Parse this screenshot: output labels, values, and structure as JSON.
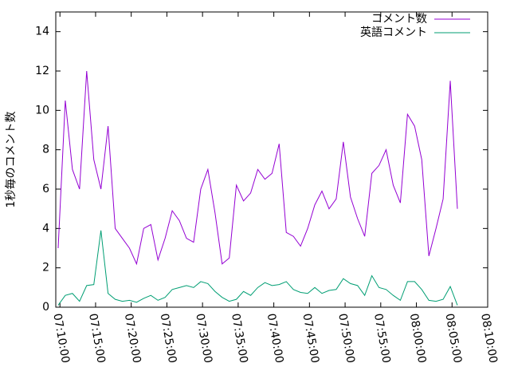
{
  "chart_data": {
    "type": "line",
    "y_label": "1秒毎のコメント数",
    "x": [
      "07:09:45",
      "07:10:45",
      "07:11:45",
      "07:12:45",
      "07:13:45",
      "07:14:45",
      "07:15:45",
      "07:16:45",
      "07:17:45",
      "07:18:45",
      "07:19:45",
      "07:20:45",
      "07:21:45",
      "07:22:45",
      "07:23:45",
      "07:24:45",
      "07:25:45",
      "07:26:45",
      "07:27:45",
      "07:28:45",
      "07:29:45",
      "07:30:45",
      "07:31:45",
      "07:32:45",
      "07:33:45",
      "07:34:45",
      "07:35:45",
      "07:36:45",
      "07:37:45",
      "07:38:45",
      "07:39:45",
      "07:40:45",
      "07:41:45",
      "07:42:45",
      "07:43:45",
      "07:44:45",
      "07:45:45",
      "07:46:45",
      "07:47:45",
      "07:48:45",
      "07:49:45",
      "07:50:45",
      "07:51:45",
      "07:52:45",
      "07:53:45",
      "07:54:45",
      "07:55:45",
      "07:56:45",
      "07:57:45",
      "07:58:45",
      "07:59:45",
      "08:00:45",
      "08:01:45",
      "08:02:45",
      "08:03:45",
      "08:04:45",
      "08:05:45"
    ],
    "series": [
      {
        "name": "コメント数",
        "color": "#9400d3",
        "values": [
          3,
          10.5,
          7,
          6,
          12,
          7.5,
          6,
          9.2,
          4,
          3.5,
          3,
          2.2,
          4,
          4.2,
          2.4,
          3.5,
          4.9,
          4.4,
          3.5,
          3.3,
          6,
          7,
          4.8,
          2.2,
          2.5,
          6.2,
          5.4,
          5.8,
          7,
          6.5,
          6.8,
          8.3,
          3.8,
          3.6,
          3.1,
          4,
          5.2,
          5.9,
          5,
          5.5,
          8.4,
          5.6,
          4.5,
          3.6,
          6.8,
          7.2,
          8,
          6.2,
          5.3,
          9.8,
          9.2,
          7.5,
          2.6,
          4,
          5.5,
          11.5,
          5
        ]
      },
      {
        "name": "英語コメント",
        "color": "#009e73",
        "values": [
          0.1,
          0.6,
          0.7,
          0.3,
          1.1,
          1.15,
          3.9,
          0.7,
          0.4,
          0.3,
          0.35,
          0.25,
          0.45,
          0.6,
          0.35,
          0.5,
          0.9,
          1.0,
          1.1,
          1.0,
          1.3,
          1.2,
          0.8,
          0.5,
          0.3,
          0.4,
          0.8,
          0.6,
          1.0,
          1.25,
          1.1,
          1.15,
          1.3,
          0.9,
          0.75,
          0.7,
          1.0,
          0.7,
          0.85,
          0.9,
          1.45,
          1.2,
          1.1,
          0.6,
          1.6,
          1.0,
          0.9,
          0.6,
          0.35,
          1.3,
          1.3,
          0.9,
          0.35,
          0.3,
          0.4,
          1.05,
          0.1
        ]
      }
    ],
    "xlim": [
      "07:09:25",
      "08:10:00"
    ],
    "xticks": [
      "07:10:00",
      "07:15:00",
      "07:20:00",
      "07:25:00",
      "07:30:00",
      "07:35:00",
      "07:40:00",
      "07:45:00",
      "07:50:00",
      "07:55:00",
      "08:00:00",
      "08:05:00",
      "08:10:00"
    ],
    "ylim": [
      0,
      15
    ],
    "yticks": [
      0,
      2,
      4,
      6,
      8,
      10,
      12,
      14
    ],
    "legend": "top-right"
  }
}
